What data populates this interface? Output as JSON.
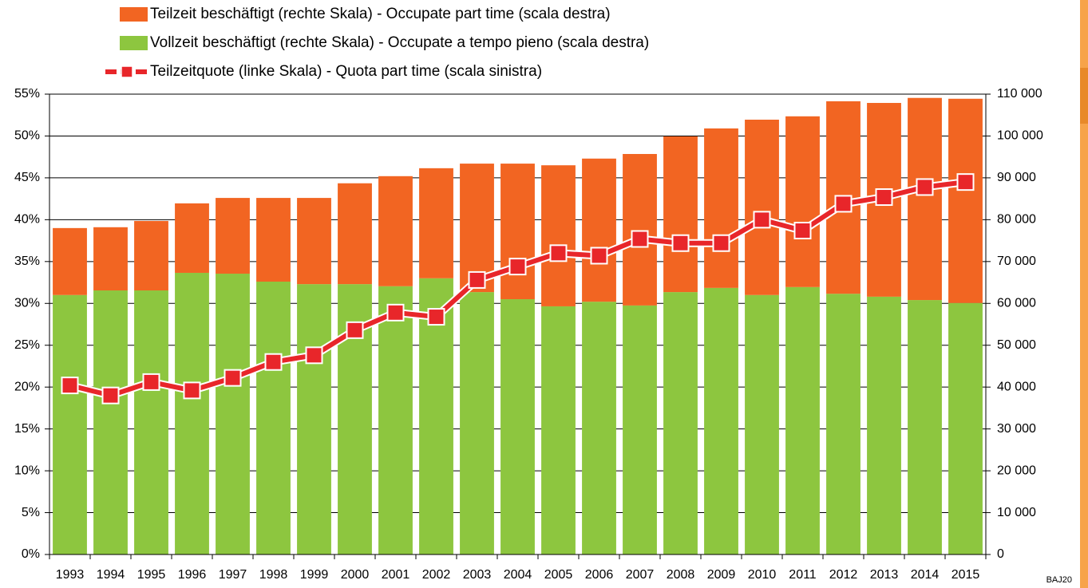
{
  "chart_data": {
    "type": "bar",
    "stacked": true,
    "grid": true,
    "legend": "top-left",
    "source_note": "BAJ20",
    "categories": [
      "1993",
      "1994",
      "1995",
      "1996",
      "1997",
      "1998",
      "1999",
      "2000",
      "2001",
      "2002",
      "2003",
      "2004",
      "2005",
      "2006",
      "2007",
      "2008",
      "2009",
      "2010",
      "2011",
      "2012",
      "2013",
      "2014",
      "2015"
    ],
    "series": [
      {
        "name": "Teilzeit beschäftigt (rechte Skala) - Occupate part time (scala destra)",
        "color": "#f26522",
        "axis": "y2",
        "values": [
          16000,
          15100,
          16600,
          16600,
          18100,
          20000,
          20600,
          24100,
          26300,
          26300,
          30700,
          32400,
          33700,
          34200,
          36200,
          37200,
          38100,
          41900,
          40800,
          46000,
          46300,
          48300,
          48800
        ]
      },
      {
        "name": "Vollzeit beschäftigt (rechte Skala) - Occupate a tempo pieno (scala destra)",
        "color": "#8dc63f",
        "axis": "y2",
        "values": [
          62000,
          63100,
          63100,
          67300,
          67100,
          65200,
          64600,
          64600,
          64100,
          66000,
          62700,
          61000,
          59300,
          60400,
          59500,
          62700,
          63700,
          62000,
          63900,
          62300,
          61600,
          60800,
          60100
        ]
      },
      {
        "name": "Teilzeitquote (linke Skala) - Quota part time (scala sinistra)",
        "color": "#e8262a",
        "type": "line",
        "axis": "y",
        "values": [
          20.2,
          19.0,
          20.6,
          19.6,
          21.1,
          23.0,
          23.8,
          26.8,
          28.9,
          28.4,
          32.8,
          34.4,
          36.0,
          35.7,
          37.7,
          37.2,
          37.2,
          40.0,
          38.7,
          41.9,
          42.7,
          43.9,
          44.5
        ]
      }
    ],
    "ylim": [
      0,
      55
    ],
    "yticks": [
      {
        "value": 0,
        "label": "0%"
      },
      {
        "value": 5,
        "label": "5%"
      },
      {
        "value": 10,
        "label": "10%"
      },
      {
        "value": 15,
        "label": "15%"
      },
      {
        "value": 20,
        "label": "20%"
      },
      {
        "value": 25,
        "label": "25%"
      },
      {
        "value": 30,
        "label": "30%"
      },
      {
        "value": 35,
        "label": "35%"
      },
      {
        "value": 40,
        "label": "40%"
      },
      {
        "value": 45,
        "label": "45%"
      },
      {
        "value": 50,
        "label": "50%"
      },
      {
        "value": 55,
        "label": "55%"
      }
    ],
    "y2lim": [
      0,
      110000
    ],
    "y2ticks": [
      0,
      {
        "value": 10000,
        "label": "10 000"
      },
      {
        "value": 20000,
        "label": "20 000"
      },
      {
        "value": 30000,
        "label": "30 000"
      },
      {
        "value": 40000,
        "label": "40 000"
      },
      {
        "value": 50000,
        "label": "50 000"
      },
      {
        "value": 60000,
        "label": "60 000"
      },
      {
        "value": 70000,
        "label": "70 000"
      },
      {
        "value": 80000,
        "label": "80 000"
      },
      {
        "value": 90000,
        "label": "90 000"
      },
      {
        "value": 100000,
        "label": "100 000"
      },
      {
        "value": 110000,
        "label": "110 000"
      }
    ]
  }
}
